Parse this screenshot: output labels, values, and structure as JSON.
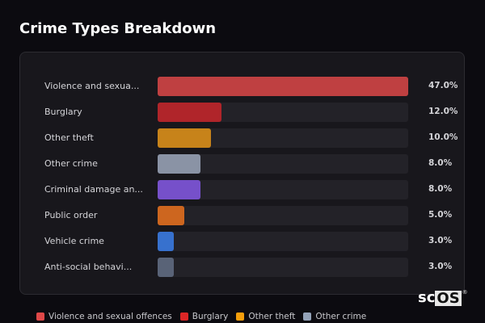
{
  "chart_data": {
    "type": "bar",
    "orientation": "horizontal",
    "title": "Crime Types Breakdown",
    "max_value": 47,
    "categories": [
      "Violence and sexua...",
      "Burglary",
      "Other theft",
      "Other crime",
      "Criminal damage an...",
      "Public order",
      "Vehicle crime",
      "Anti-social behavi..."
    ],
    "values": [
      47.0,
      12.0,
      10.0,
      8.0,
      8.0,
      5.0,
      3.0,
      3.0
    ],
    "value_labels": [
      "47.0%",
      "12.0%",
      "10.0%",
      "8.0%",
      "8.0%",
      "5.0%",
      "3.0%",
      "3.0%"
    ],
    "colors": [
      "#d04444",
      "#c0262a",
      "#d98e18",
      "#96a0b2",
      "#8055dc",
      "#e06e1e",
      "#3a7ae0",
      "#5f6a80"
    ],
    "legend": [
      {
        "label": "Violence and sexual offences",
        "color": "#e04848"
      },
      {
        "label": "Burglary",
        "color": "#dc2626"
      },
      {
        "label": "Other theft",
        "color": "#f59e0b"
      },
      {
        "label": "Other crime",
        "color": "#94a3b8"
      }
    ],
    "legend_position": "bottom"
  },
  "logo": {
    "text": "scOS",
    "a": "sc",
    "b": "OS"
  }
}
